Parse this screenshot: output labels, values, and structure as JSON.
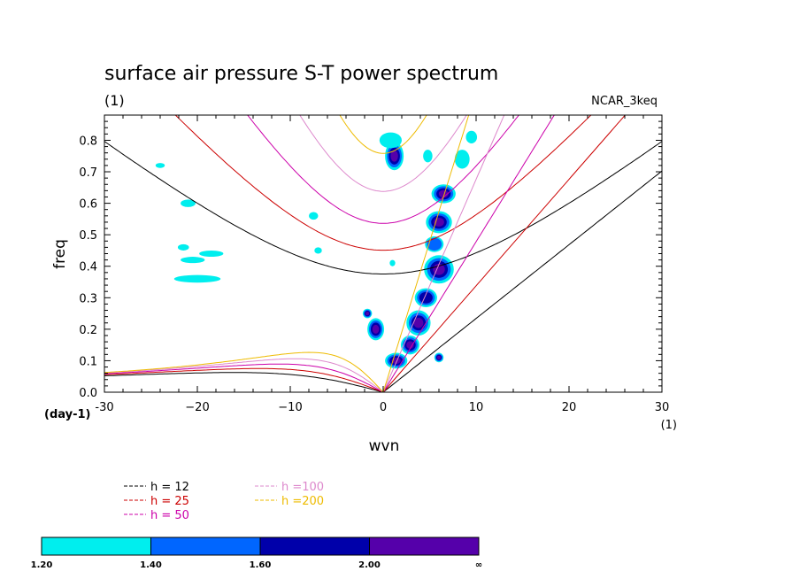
{
  "chart_data": {
    "type": "heatmap",
    "title": "surface air pressure S-T power spectrum",
    "subtitle": "(1)",
    "run_label": "NCAR_3keq",
    "xlabel": "wvn",
    "ylabel": "freq",
    "x_unit": "(1)",
    "y_unit": "(day-1)",
    "xlim": [
      -30,
      30
    ],
    "ylim": [
      0,
      0.88
    ],
    "x_ticks": [
      -30,
      -20,
      -10,
      0,
      10,
      20,
      30
    ],
    "x_tick_labels": [
      "-30",
      "−20",
      "−10",
      "0",
      "10",
      "20",
      "30"
    ],
    "y_ticks": [
      0.0,
      0.1,
      0.2,
      0.3,
      0.4,
      0.5,
      0.6,
      0.7,
      0.8
    ],
    "y_tick_labels": [
      "0.0",
      "0.1",
      "0.2",
      "0.3",
      "0.4",
      "0.5",
      "0.6",
      "0.7",
      "0.8"
    ],
    "dispersion_curves": [
      {
        "label": "h = 12",
        "h": 12,
        "color": "#000000"
      },
      {
        "label": "h = 25",
        "h": 25,
        "color": "#cc0000"
      },
      {
        "label": "h = 50",
        "h": 50,
        "color": "#cc00aa"
      },
      {
        "label": "h =100",
        "h": 100,
        "color": "#dd88cc"
      },
      {
        "label": "h =200",
        "h": 200,
        "color": "#eebb00"
      }
    ],
    "colorbar": {
      "colors": [
        "#00eeee",
        "#0066ff",
        "#0000aa",
        "#5500aa"
      ],
      "tick_labels": [
        "1.20",
        "1.40",
        "1.60",
        "2.00",
        "∞"
      ]
    },
    "spectral_peaks": [
      {
        "wvn": 1.2,
        "freq": 0.75,
        "rx": 1.0,
        "ry": 0.045,
        "level": 3
      },
      {
        "wvn": 0.8,
        "freq": 0.8,
        "rx": 1.2,
        "ry": 0.025,
        "level": 0
      },
      {
        "wvn": 6.5,
        "freq": 0.63,
        "rx": 1.3,
        "ry": 0.03,
        "level": 3
      },
      {
        "wvn": 6.0,
        "freq": 0.54,
        "rx": 1.4,
        "ry": 0.035,
        "level": 3
      },
      {
        "wvn": 5.5,
        "freq": 0.47,
        "rx": 1.0,
        "ry": 0.025,
        "level": 1
      },
      {
        "wvn": 6.0,
        "freq": 0.39,
        "rx": 1.6,
        "ry": 0.045,
        "level": 3
      },
      {
        "wvn": 4.6,
        "freq": 0.3,
        "rx": 1.2,
        "ry": 0.03,
        "level": 2
      },
      {
        "wvn": 3.8,
        "freq": 0.22,
        "rx": 1.3,
        "ry": 0.04,
        "level": 3
      },
      {
        "wvn": 2.9,
        "freq": 0.15,
        "rx": 1.0,
        "ry": 0.03,
        "level": 3
      },
      {
        "wvn": 1.4,
        "freq": 0.1,
        "rx": 1.2,
        "ry": 0.025,
        "level": 3
      },
      {
        "wvn": -0.8,
        "freq": 0.2,
        "rx": 0.9,
        "ry": 0.035,
        "level": 3
      },
      {
        "wvn": -1.7,
        "freq": 0.25,
        "rx": 0.5,
        "ry": 0.015,
        "level": 3
      },
      {
        "wvn": 6.0,
        "freq": 0.11,
        "rx": 0.5,
        "ry": 0.015,
        "level": 3
      },
      {
        "wvn": 8.5,
        "freq": 0.74,
        "rx": 0.8,
        "ry": 0.03,
        "level": 0
      },
      {
        "wvn": 9.5,
        "freq": 0.81,
        "rx": 0.6,
        "ry": 0.02,
        "level": 0
      },
      {
        "wvn": 4.8,
        "freq": 0.75,
        "rx": 0.5,
        "ry": 0.02,
        "level": 0
      },
      {
        "wvn": -20.0,
        "freq": 0.36,
        "rx": 2.5,
        "ry": 0.012,
        "level": 0
      },
      {
        "wvn": -20.5,
        "freq": 0.42,
        "rx": 1.3,
        "ry": 0.01,
        "level": 0
      },
      {
        "wvn": -18.5,
        "freq": 0.44,
        "rx": 1.3,
        "ry": 0.01,
        "level": 0
      },
      {
        "wvn": -21.0,
        "freq": 0.6,
        "rx": 0.8,
        "ry": 0.012,
        "level": 0
      },
      {
        "wvn": -24.0,
        "freq": 0.72,
        "rx": 0.5,
        "ry": 0.008,
        "level": 0
      },
      {
        "wvn": -21.5,
        "freq": 0.46,
        "rx": 0.6,
        "ry": 0.01,
        "level": 0
      },
      {
        "wvn": -7.5,
        "freq": 0.56,
        "rx": 0.5,
        "ry": 0.012,
        "level": 0
      },
      {
        "wvn": -7.0,
        "freq": 0.45,
        "rx": 0.4,
        "ry": 0.01,
        "level": 0
      },
      {
        "wvn": 1.0,
        "freq": 0.41,
        "rx": 0.3,
        "ry": 0.01,
        "level": 0
      }
    ]
  }
}
